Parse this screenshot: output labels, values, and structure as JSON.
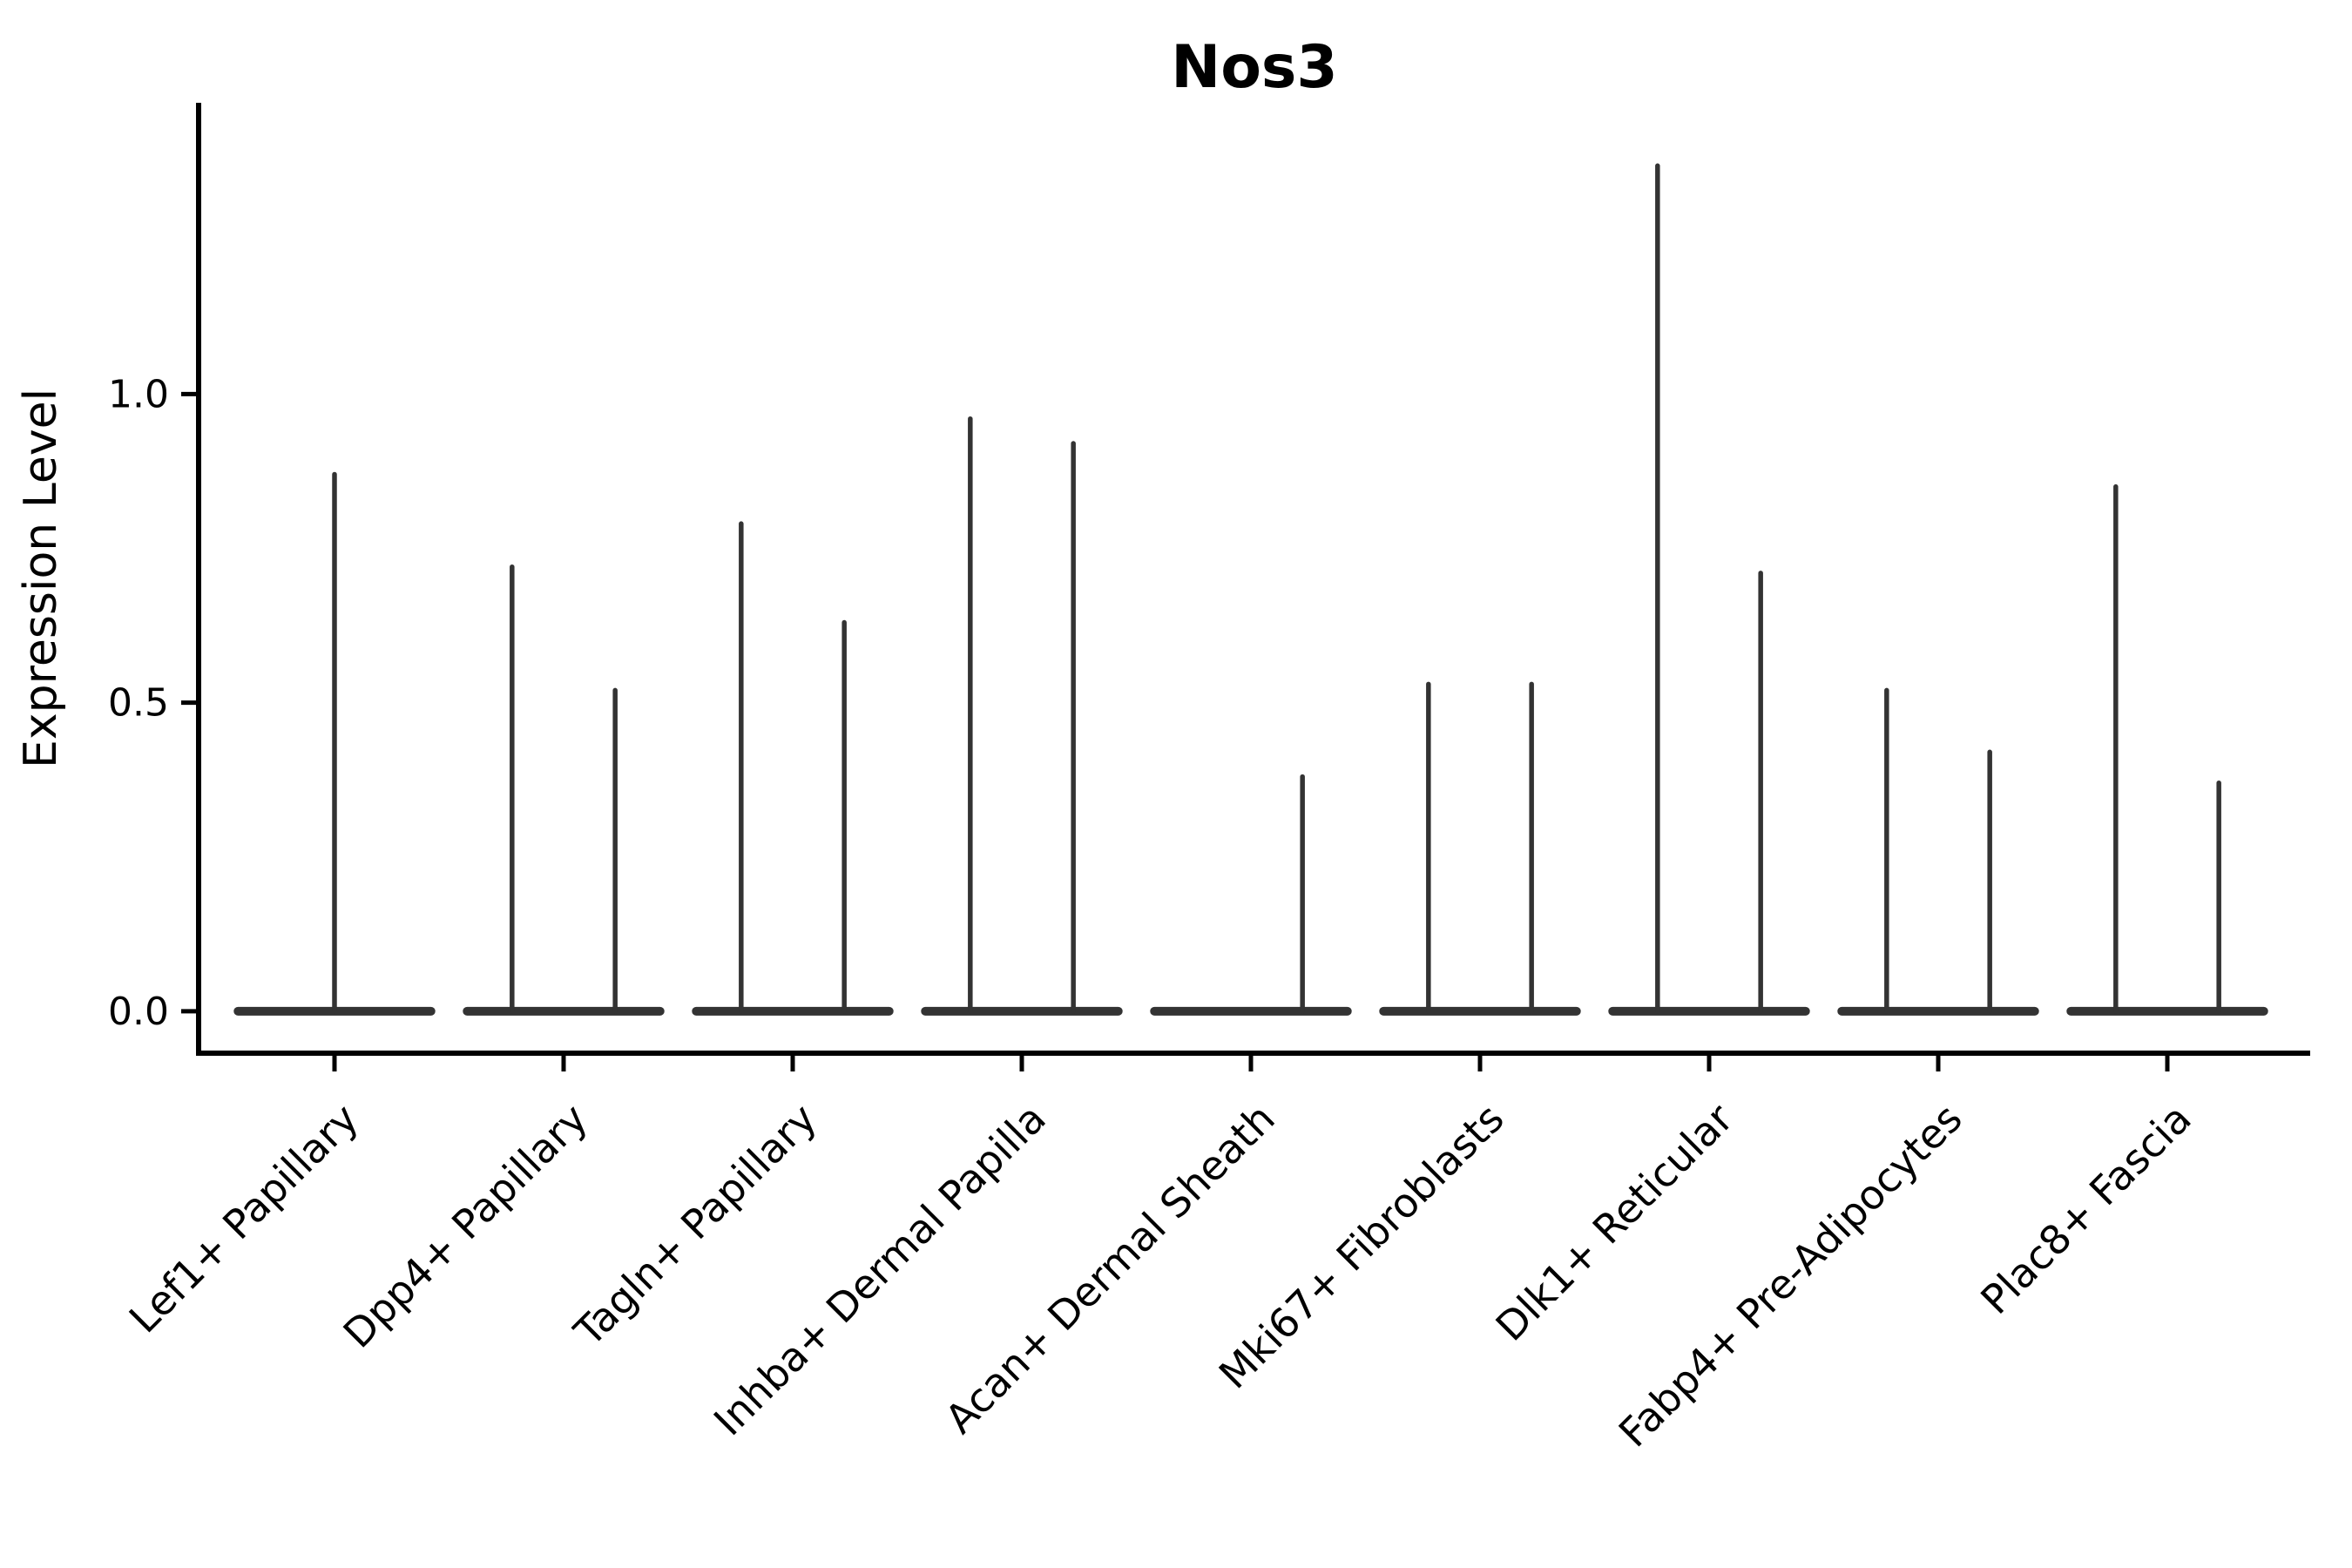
{
  "chart_data": {
    "type": "violin",
    "title": "Nos3",
    "ylabel": "Expression Level",
    "xlabel": "",
    "yticks": [
      {
        "label": "0.0",
        "value": 0.0
      },
      {
        "label": "0.5",
        "value": 0.5
      },
      {
        "label": "1.0",
        "value": 1.0
      }
    ],
    "ylim": [
      -0.068,
      1.472
    ],
    "grid": false,
    "legend": null,
    "categories": [
      "Lef1+ Papillary",
      "Dpp4+ Papillary",
      "Tagln+ Papillary",
      "Inhba+ Dermal Papilla",
      "Acan+ Dermal Sheath",
      "Mki67+ Fibroblasts",
      "Dlk1+ Reticular",
      "Fabp4+ Pre-Adipocytes",
      "Plac8+ Fascia"
    ],
    "groups": [
      {
        "category": "Lef1+ Papillary",
        "spikes": [
          {
            "offset": 0.0,
            "max": 0.87
          }
        ]
      },
      {
        "category": "Dpp4+ Papillary",
        "spikes": [
          {
            "offset": -0.225,
            "max": 0.72
          },
          {
            "offset": 0.225,
            "max": 0.52
          }
        ]
      },
      {
        "category": "Tagln+ Papillary",
        "spikes": [
          {
            "offset": -0.225,
            "max": 0.79
          },
          {
            "offset": 0.225,
            "max": 0.63
          }
        ]
      },
      {
        "category": "Inhba+ Dermal Papilla",
        "spikes": [
          {
            "offset": -0.225,
            "max": 0.96
          },
          {
            "offset": 0.225,
            "max": 0.92
          }
        ]
      },
      {
        "category": "Acan+ Dermal Sheath",
        "spikes": [
          {
            "offset": 0.225,
            "max": 0.38
          }
        ]
      },
      {
        "category": "Mki67+ Fibroblasts",
        "spikes": [
          {
            "offset": -0.225,
            "max": 0.53
          },
          {
            "offset": 0.225,
            "max": 0.53
          }
        ]
      },
      {
        "category": "Dlk1+ Reticular",
        "spikes": [
          {
            "offset": -0.225,
            "max": 1.37
          },
          {
            "offset": 0.225,
            "max": 0.71
          }
        ]
      },
      {
        "category": "Fabp4+ Pre-Adipocytes",
        "spikes": [
          {
            "offset": -0.225,
            "max": 0.52
          },
          {
            "offset": 0.225,
            "max": 0.42
          }
        ]
      },
      {
        "category": "Plac8+ Fascia",
        "spikes": [
          {
            "offset": -0.225,
            "max": 0.85
          },
          {
            "offset": 0.225,
            "max": 0.37
          }
        ]
      }
    ],
    "violin_halfwidth": 0.44,
    "colors": {
      "violin": "#333333",
      "axis": "#000000",
      "text": "#000000",
      "background": "#ffffff"
    }
  }
}
